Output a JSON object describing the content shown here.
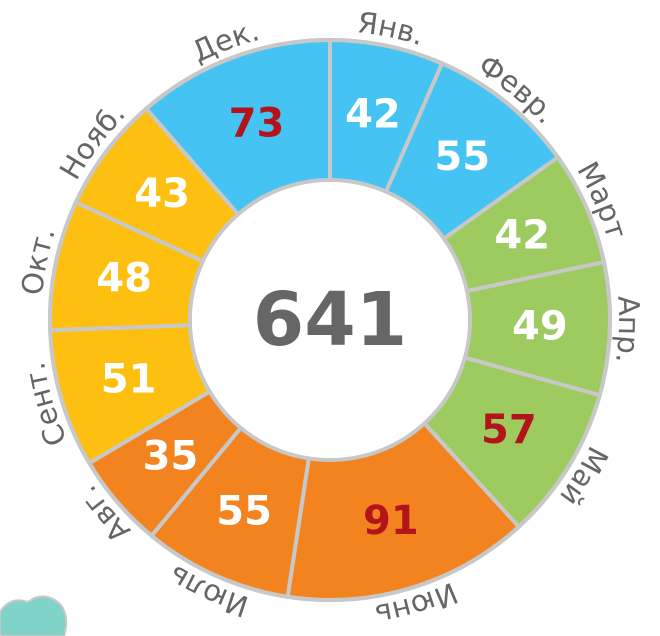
{
  "chart_data": {
    "type": "donut",
    "categories": [
      "Янв.",
      "Февр.",
      "Март",
      "Апр.",
      "Май",
      "Июнь",
      "Июль",
      "Авг.",
      "Сент.",
      "Окт.",
      "Нояб.",
      "Дек."
    ],
    "values": [
      42,
      55,
      42,
      49,
      57,
      91,
      55,
      35,
      51,
      48,
      43,
      73
    ],
    "colors": [
      "#45c4f3",
      "#45c4f3",
      "#9dcb5f",
      "#9dcb5f",
      "#9dcb5f",
      "#f2831f",
      "#f2831f",
      "#f2831f",
      "#fdc010",
      "#fdc010",
      "#fdc010",
      "#45c4f3"
    ],
    "label_colors": [
      "#ffffff",
      "#ffffff",
      "#ffffff",
      "#ffffff",
      "#b3141c",
      "#b3141c",
      "#ffffff",
      "#ffffff",
      "#ffffff",
      "#ffffff",
      "#ffffff",
      "#b3141c"
    ],
    "total": 641
  }
}
